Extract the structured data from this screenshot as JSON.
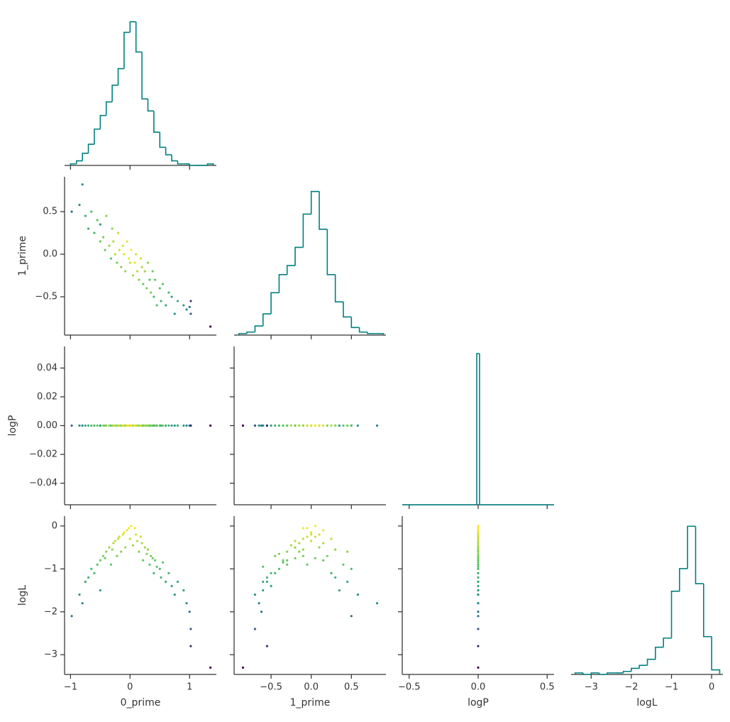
{
  "chart_data": {
    "type": "corner",
    "variables": [
      "0_prime",
      "1_prime",
      "logP",
      "logL"
    ],
    "colormap": "viridis",
    "hist_color": "#008080",
    "axes": [
      {
        "xlim": [
          -1.1,
          1.45
        ],
        "xticks": [
          {
            "value": -1,
            "label": "−1"
          },
          0,
          1
        ]
      },
      {
        "xlim": [
          -0.96,
          0.93
        ],
        "xticks": [
          {
            "value": -0.5,
            "label": "−0.5"
          },
          {
            "value": 0,
            "label": "0.0"
          },
          0.5
        ],
        "ylim": [
          -0.95,
          0.91
        ],
        "yticks": [
          {
            "value": -0.5,
            "label": "−0.5"
          },
          {
            "value": 0,
            "label": "0.0"
          },
          0.5
        ]
      },
      {
        "xlim": [
          -0.55,
          0.55
        ],
        "xticks": [
          {
            "value": -0.5,
            "label": "−0.5"
          },
          {
            "value": 0,
            "label": "0.0"
          },
          0.5
        ],
        "ylim": [
          -0.055,
          0.055
        ],
        "yticks": [
          {
            "value": -0.04,
            "label": "−0.04"
          },
          {
            "value": -0.02,
            "label": "−0.02"
          },
          {
            "value": 0,
            "label": "0.00"
          },
          0.02,
          0.04
        ]
      },
      {
        "xlim": [
          -3.5,
          0.28
        ],
        "xticks": [
          {
            "value": -3,
            "label": "−3"
          },
          {
            "value": -2,
            "label": "−2"
          },
          {
            "value": -1,
            "label": "−1"
          },
          0
        ],
        "ylim": [
          -3.46,
          0.23
        ],
        "yticks": [
          {
            "value": -3,
            "label": "−3"
          },
          {
            "value": -2,
            "label": "−2"
          },
          {
            "value": -1,
            "label": "−1"
          },
          0
        ]
      }
    ],
    "hists": [
      {
        "bins": [
          -1.0,
          -0.9,
          -0.8,
          -0.7,
          -0.6,
          -0.5,
          -0.4,
          -0.3,
          -0.2,
          -0.1,
          0.0,
          0.1,
          0.2,
          0.3,
          0.4,
          0.5,
          0.6,
          0.7,
          0.8,
          0.9,
          1.0,
          1.1,
          1.2,
          1.3,
          1.4
        ],
        "counts": [
          1,
          3,
          8,
          14,
          24,
          33,
          42,
          53,
          64,
          88,
          95,
          75,
          44,
          36,
          22,
          12,
          7,
          3,
          1,
          1,
          0,
          0,
          0,
          1
        ],
        "ylim": [
          0,
          100
        ]
      },
      {
        "bins": [
          -0.9,
          -0.8,
          -0.7,
          -0.6,
          -0.5,
          -0.4,
          -0.3,
          -0.2,
          -0.1,
          0.0,
          0.1,
          0.2,
          0.3,
          0.4,
          0.5,
          0.6,
          0.7,
          0.8,
          0.9
        ],
        "counts": [
          1,
          2,
          6,
          14,
          28,
          40,
          46,
          58,
          80,
          95,
          70,
          40,
          22,
          12,
          5,
          2,
          1,
          1
        ],
        "ylim": [
          0,
          100
        ]
      },
      {
        "bins": [
          -0.55,
          -0.01,
          0.01,
          0.55
        ],
        "counts": [
          0,
          100,
          0
        ],
        "ylim": [
          0,
          100
        ]
      },
      {
        "bins": [
          -3.4,
          -3.2,
          -3.0,
          -2.8,
          -2.6,
          -2.4,
          -2.2,
          -2.0,
          -1.8,
          -1.6,
          -1.4,
          -1.2,
          -1.0,
          -0.8,
          -0.6,
          -0.4,
          -0.2,
          0.0,
          0.2
        ],
        "counts": [
          1,
          0,
          1,
          0,
          1,
          1,
          2,
          4,
          6,
          10,
          18,
          24,
          55,
          70,
          98,
          60,
          25,
          3
        ],
        "ylim": [
          0,
          100
        ]
      }
    ],
    "samples": [
      [
        -0.98,
        -0.85,
        -0.8,
        -0.75,
        -0.7,
        -0.65,
        -0.6,
        -0.55,
        -0.5,
        -0.5,
        -0.45,
        -0.42,
        -0.4,
        -0.35,
        -0.32,
        -0.3,
        -0.28,
        -0.25,
        -0.22,
        -0.2,
        -0.18,
        -0.15,
        -0.12,
        -0.1,
        -0.08,
        -0.05,
        -0.02,
        0.0,
        0.02,
        0.05,
        0.08,
        0.1,
        0.12,
        0.15,
        0.18,
        0.2,
        0.22,
        0.25,
        0.28,
        0.3,
        0.33,
        0.35,
        0.38,
        0.4,
        0.42,
        0.45,
        0.5,
        0.52,
        0.55,
        0.6,
        0.65,
        0.7,
        0.75,
        0.8,
        0.9,
        0.95,
        1.0,
        1.02,
        1.02,
        1.35
      ],
      [
        0.5,
        0.58,
        0.82,
        0.45,
        0.3,
        0.5,
        0.25,
        0.4,
        0.15,
        0.35,
        0.2,
        0.05,
        0.45,
        0.1,
        -0.05,
        0.3,
        0.15,
        0.0,
        -0.1,
        0.25,
        0.05,
        -0.15,
        0.1,
        0.0,
        -0.2,
        0.15,
        -0.05,
        -0.1,
        0.05,
        -0.25,
        -0.1,
        0.0,
        -0.2,
        -0.3,
        -0.05,
        -0.15,
        -0.35,
        -0.2,
        -0.4,
        -0.1,
        -0.3,
        -0.45,
        -0.2,
        -0.5,
        -0.3,
        -0.6,
        -0.4,
        -0.55,
        -0.35,
        -0.6,
        -0.45,
        -0.5,
        -0.7,
        -0.55,
        -0.6,
        -0.65,
        -0.62,
        -0.7,
        -0.55,
        -0.85
      ],
      [
        0,
        0,
        0,
        0,
        0,
        0,
        0,
        0,
        0,
        0,
        0,
        0,
        0,
        0,
        0,
        0,
        0,
        0,
        0,
        0,
        0,
        0,
        0,
        0,
        0,
        0,
        0,
        0,
        0,
        0,
        0,
        0,
        0,
        0,
        0,
        0,
        0,
        0,
        0,
        0,
        0,
        0,
        0,
        0,
        0,
        0,
        0,
        0,
        0,
        0,
        0,
        0,
        0,
        0,
        0,
        0,
        0,
        0,
        0,
        0
      ],
      [
        -2.1,
        -1.6,
        -1.8,
        -1.3,
        -1.2,
        -1.0,
        -1.1,
        -0.9,
        -0.8,
        -1.5,
        -0.7,
        -0.75,
        -0.6,
        -0.5,
        -0.9,
        -0.55,
        -0.4,
        -0.35,
        -0.7,
        -0.3,
        -0.25,
        -0.6,
        -0.2,
        -0.15,
        -0.5,
        -0.1,
        -0.05,
        -0.3,
        0.0,
        -0.45,
        -0.05,
        -0.2,
        -0.35,
        -0.6,
        -0.25,
        -0.4,
        -0.8,
        -0.5,
        -0.65,
        -0.55,
        -0.9,
        -0.7,
        -0.75,
        -1.1,
        -0.8,
        -0.95,
        -1.0,
        -1.2,
        -0.85,
        -1.3,
        -1.1,
        -1.4,
        -1.6,
        -1.3,
        -1.5,
        -1.8,
        -2.0,
        -2.4,
        -2.8,
        -3.3
      ]
    ]
  }
}
